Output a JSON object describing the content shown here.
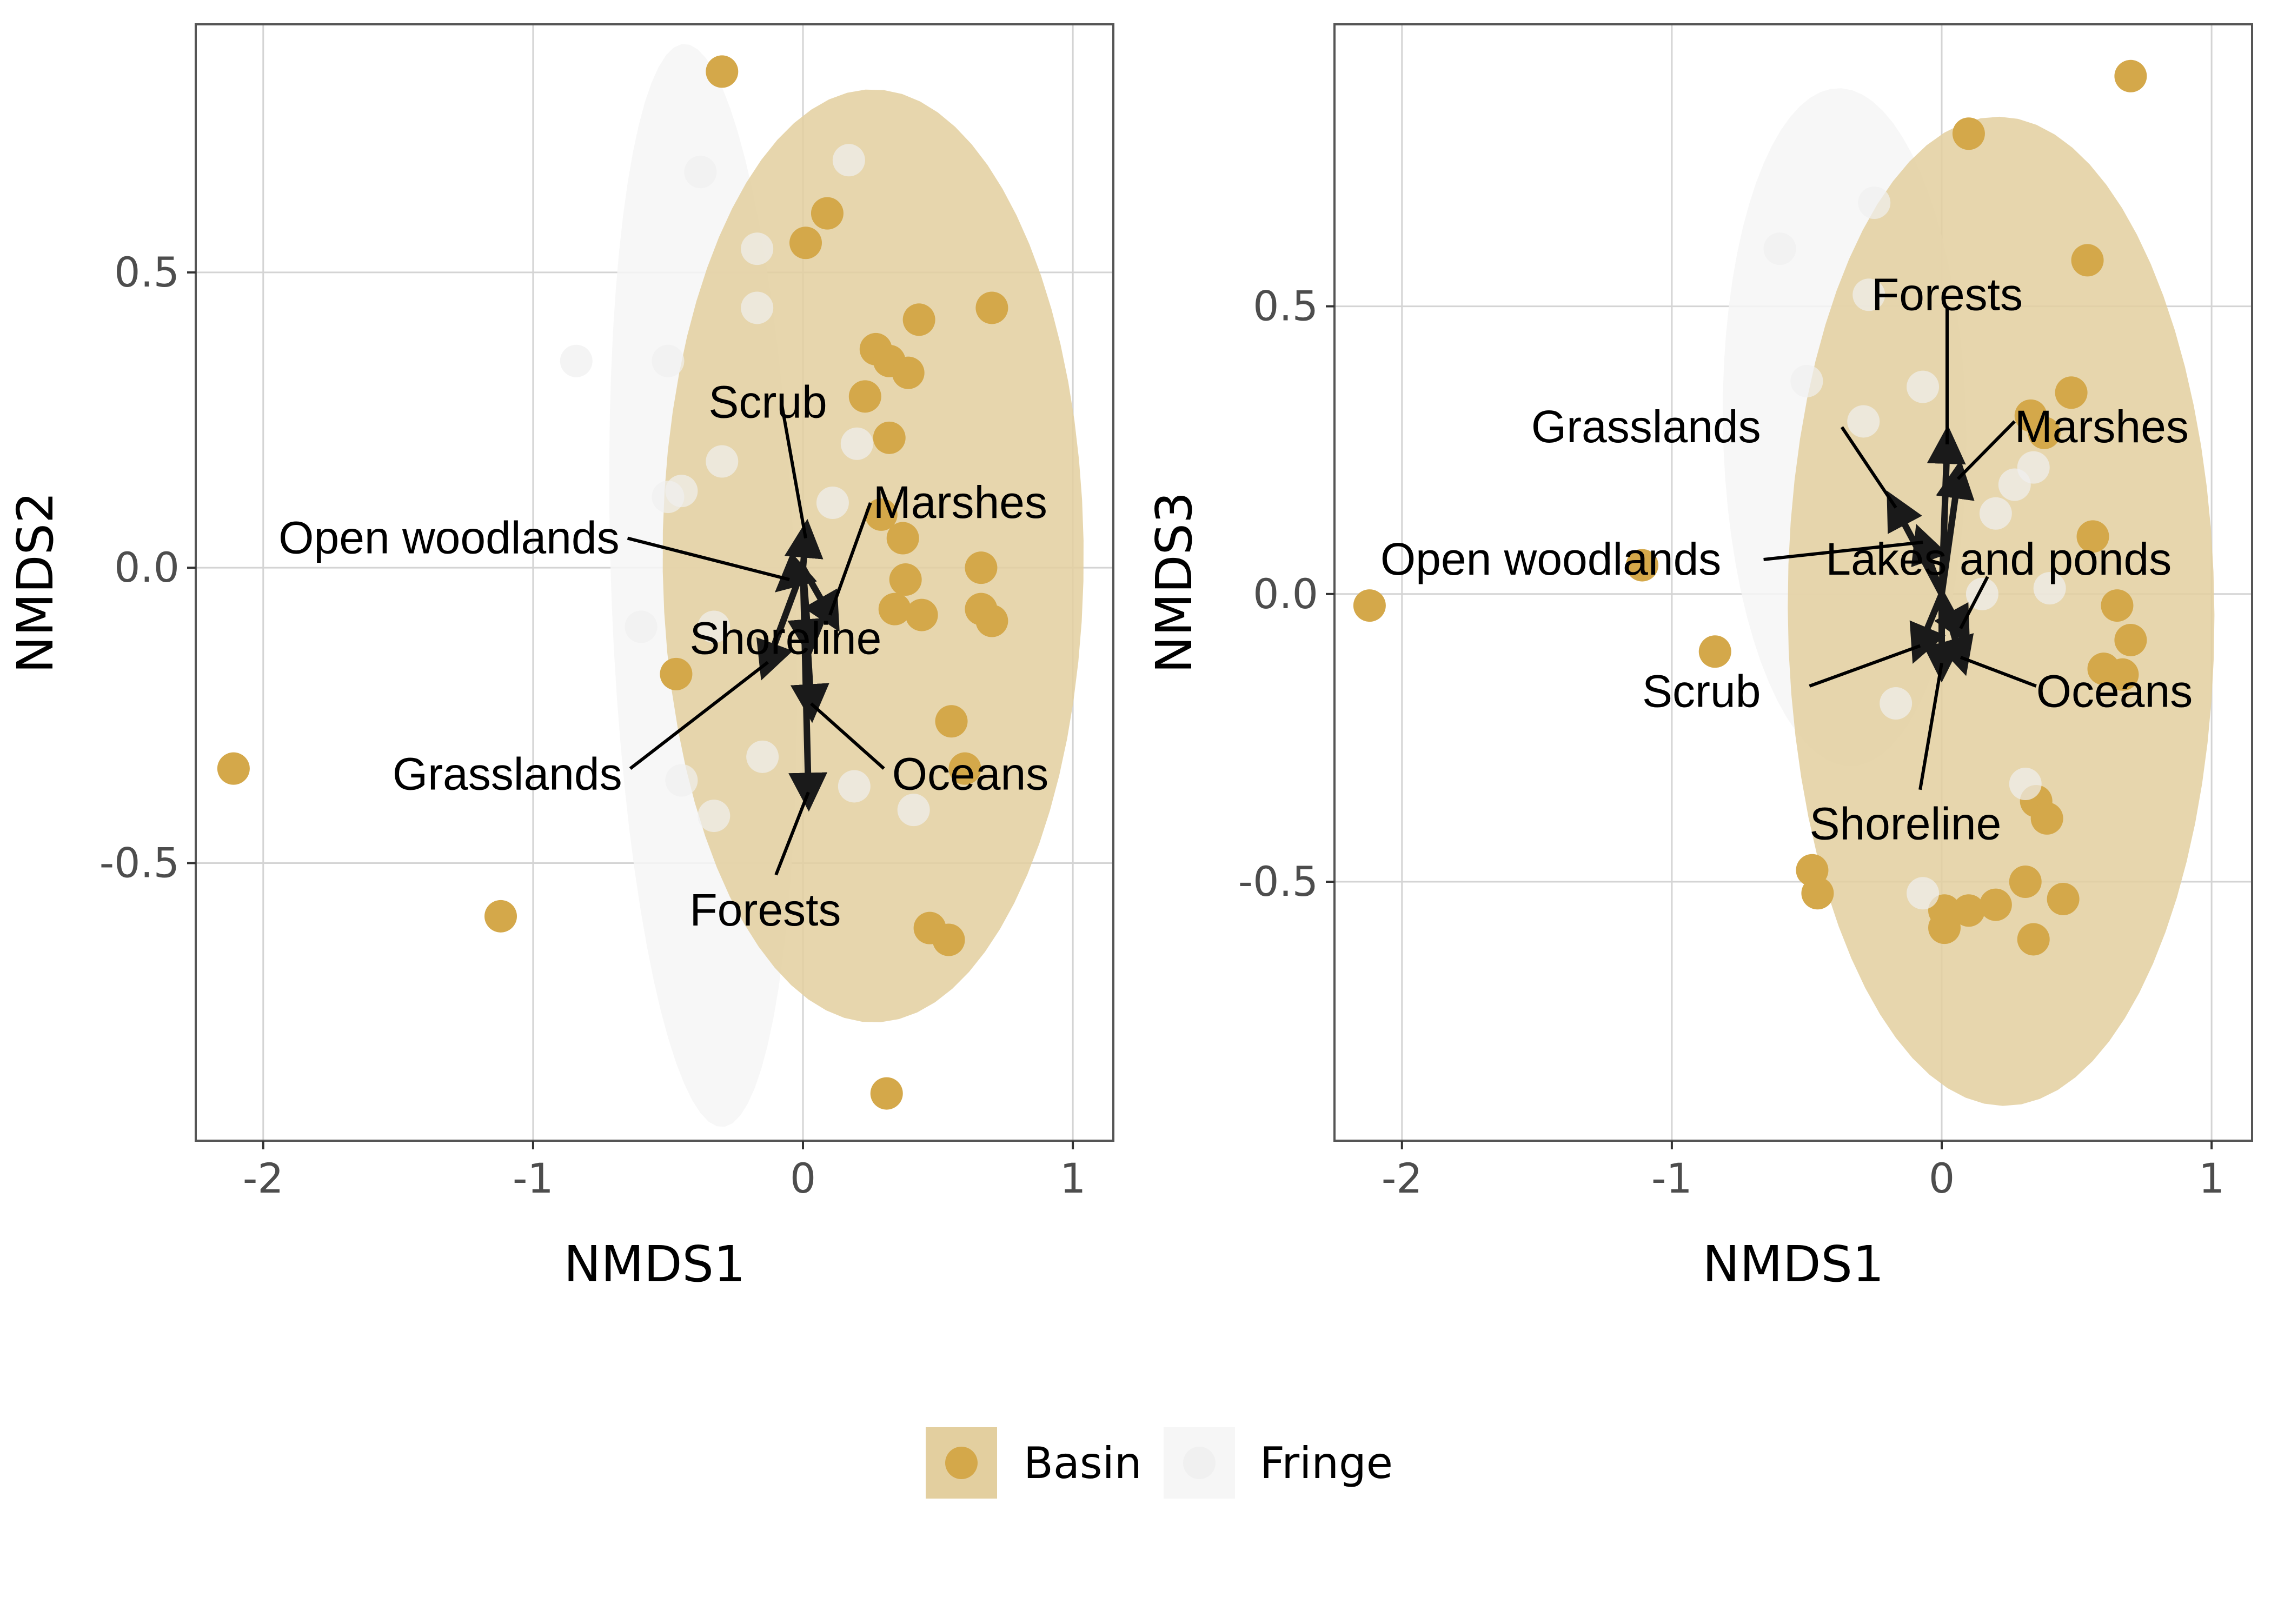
{
  "colors": {
    "basin": "#d4a84a",
    "basin_ellipse": "#e3cf9f",
    "fringe": "#f0f0f0",
    "fringe_ellipse": "#f6f6f6",
    "grid": "#d4d4d4",
    "panel_border": "#555555",
    "arrow": "#1a1a1a"
  },
  "legend": {
    "items": [
      {
        "label": "Basin",
        "color_key": "basin",
        "fill_key": "basin_ellipse"
      },
      {
        "label": "Fringe",
        "color_key": "fringe",
        "fill_key": "fringe_ellipse"
      }
    ]
  },
  "chart_data": [
    {
      "type": "scatter",
      "xlabel": "NMDS1",
      "ylabel": "NMDS2",
      "xlim": [
        -2.25,
        1.15
      ],
      "ylim": [
        -0.97,
        0.92
      ],
      "xticks": [
        -2,
        -1,
        0,
        1
      ],
      "xtick_labels": [
        "-2",
        "-1",
        "0",
        "1"
      ],
      "yticks": [
        -0.5,
        0.0,
        0.5
      ],
      "ytick_labels": [
        "-0.5",
        "0.0",
        "0.5"
      ],
      "grid": true,
      "ellipses": [
        {
          "group": "Fringe",
          "cx": -0.37,
          "cy": -0.03,
          "rx": 0.92,
          "ry": 0.34,
          "angle": 95
        },
        {
          "group": "Basin",
          "cx": 0.26,
          "cy": 0.02,
          "rx": 0.79,
          "ry": 0.78,
          "angle": -83
        }
      ],
      "series": [
        {
          "name": "Basin",
          "points": [
            [
              -0.3,
              0.84
            ],
            [
              0.09,
              0.6
            ],
            [
              0.01,
              0.55
            ],
            [
              0.43,
              0.42
            ],
            [
              0.7,
              0.44
            ],
            [
              0.27,
              0.37
            ],
            [
              0.32,
              0.35
            ],
            [
              0.39,
              0.33
            ],
            [
              0.23,
              0.29
            ],
            [
              0.32,
              0.22
            ],
            [
              0.29,
              0.09
            ],
            [
              0.37,
              0.05
            ],
            [
              0.38,
              -0.02
            ],
            [
              0.34,
              -0.07
            ],
            [
              0.44,
              -0.08
            ],
            [
              0.66,
              0.0
            ],
            [
              0.66,
              -0.07
            ],
            [
              0.7,
              -0.09
            ],
            [
              0.55,
              -0.26
            ],
            [
              0.6,
              -0.34
            ],
            [
              0.47,
              -0.61
            ],
            [
              0.54,
              -0.63
            ],
            [
              0.31,
              -0.89
            ],
            [
              -0.47,
              -0.18
            ],
            [
              -2.11,
              -0.34
            ],
            [
              -1.12,
              -0.59
            ]
          ]
        },
        {
          "name": "Fringe",
          "points": [
            [
              -0.38,
              0.67
            ],
            [
              0.17,
              0.69
            ],
            [
              -0.17,
              0.54
            ],
            [
              -0.17,
              0.44
            ],
            [
              -0.84,
              0.35
            ],
            [
              -0.5,
              0.35
            ],
            [
              0.2,
              0.21
            ],
            [
              -0.3,
              0.18
            ],
            [
              -0.45,
              0.13
            ],
            [
              -0.5,
              0.12
            ],
            [
              0.11,
              0.11
            ],
            [
              -0.6,
              -0.1
            ],
            [
              -0.33,
              -0.1
            ],
            [
              -0.45,
              -0.36
            ],
            [
              -0.15,
              -0.32
            ],
            [
              0.19,
              -0.37
            ],
            [
              0.41,
              -0.41
            ],
            [
              -0.33,
              -0.42
            ]
          ]
        }
      ],
      "biplot": [
        {
          "label": "Scrub",
          "arrow_end": [
            0.01,
            0.05
          ],
          "label_at": [
            -0.35,
            0.28
          ],
          "anchor": "start",
          "leader_from": [
            -0.08,
            0.28
          ]
        },
        {
          "label": "Open woodlands",
          "arrow_end": [
            -0.05,
            -0.02
          ],
          "label_at": [
            -0.68,
            0.05
          ],
          "anchor": "end",
          "leader_from": [
            -0.65,
            0.05
          ]
        },
        {
          "label": "Marshes",
          "arrow_end": [
            0.1,
            -0.08
          ],
          "label_at": [
            0.26,
            0.11
          ],
          "anchor": "start",
          "leader_from": [
            0.25,
            0.11
          ]
        },
        {
          "label": "Shoreline",
          "arrow_end": [
            0.02,
            -0.12
          ],
          "label_at": [
            -0.42,
            -0.12
          ],
          "anchor": "start",
          "leader_from": null
        },
        {
          "label": "Grasslands",
          "arrow_end": [
            -0.13,
            -0.16
          ],
          "label_at": [
            -0.67,
            -0.35
          ],
          "anchor": "end",
          "leader_from": [
            -0.64,
            -0.34
          ]
        },
        {
          "label": "Oceans",
          "arrow_end": [
            0.03,
            -0.23
          ],
          "label_at": [
            0.33,
            -0.35
          ],
          "anchor": "start",
          "leader_from": [
            0.3,
            -0.34
          ]
        },
        {
          "label": "Forests",
          "arrow_end": [
            0.02,
            -0.38
          ],
          "label_at": [
            -0.42,
            -0.58
          ],
          "anchor": "start",
          "leader_from": [
            -0.1,
            -0.52
          ]
        }
      ]
    },
    {
      "type": "scatter",
      "xlabel": "NMDS1",
      "ylabel": "NMDS3",
      "xlim": [
        -2.25,
        1.15
      ],
      "ylim": [
        -0.95,
        0.99
      ],
      "xticks": [
        -2,
        -1,
        0,
        1
      ],
      "xtick_labels": [
        "-2",
        "-1",
        "0",
        "1"
      ],
      "yticks": [
        -0.5,
        0.0,
        0.5
      ],
      "ytick_labels": [
        "-0.5",
        "0.0",
        "0.5"
      ],
      "grid": true,
      "ellipses": [
        {
          "group": "Fringe",
          "cx": -0.36,
          "cy": 0.29,
          "rx": 0.59,
          "ry": 0.45,
          "angle": 95
        },
        {
          "group": "Basin",
          "cx": 0.22,
          "cy": -0.03,
          "rx": 0.86,
          "ry": 0.79,
          "angle": -85
        }
      ],
      "series": [
        {
          "name": "Basin",
          "points": [
            [
              0.7,
              0.9
            ],
            [
              0.1,
              0.8
            ],
            [
              0.54,
              0.58
            ],
            [
              0.33,
              0.31
            ],
            [
              0.48,
              0.35
            ],
            [
              0.38,
              0.28
            ],
            [
              0.56,
              0.1
            ],
            [
              0.65,
              -0.02
            ],
            [
              0.7,
              -0.08
            ],
            [
              0.6,
              -0.13
            ],
            [
              0.67,
              -0.14
            ],
            [
              0.35,
              -0.36
            ],
            [
              0.39,
              -0.39
            ],
            [
              -0.48,
              -0.48
            ],
            [
              -0.46,
              -0.52
            ],
            [
              0.01,
              -0.55
            ],
            [
              0.1,
              -0.55
            ],
            [
              0.2,
              -0.54
            ],
            [
              0.31,
              -0.5
            ],
            [
              0.45,
              -0.53
            ],
            [
              0.01,
              -0.58
            ],
            [
              0.34,
              -0.6
            ],
            [
              -0.84,
              -0.1
            ],
            [
              -1.11,
              0.05
            ],
            [
              -2.12,
              -0.02
            ]
          ]
        },
        {
          "name": "Fringe",
          "points": [
            [
              -0.25,
              0.68
            ],
            [
              -0.6,
              0.6
            ],
            [
              -0.27,
              0.52
            ],
            [
              -0.5,
              0.37
            ],
            [
              -0.07,
              0.36
            ],
            [
              -0.29,
              0.3
            ],
            [
              0.34,
              0.22
            ],
            [
              0.27,
              0.19
            ],
            [
              0.2,
              0.14
            ],
            [
              0.4,
              0.01
            ],
            [
              -0.17,
              -0.19
            ],
            [
              0.31,
              -0.33
            ],
            [
              -0.07,
              -0.52
            ],
            [
              0.15,
              0.0
            ]
          ]
        }
      ],
      "biplot": [
        {
          "label": "Forests",
          "arrow_end": [
            0.02,
            0.26
          ],
          "label_at": [
            0.02,
            0.52
          ],
          "anchor": "middle",
          "leader_from": [
            0.02,
            0.5
          ]
        },
        {
          "label": "Grasslands",
          "arrow_end": [
            -0.17,
            0.15
          ],
          "label_at": [
            -0.67,
            0.29
          ],
          "anchor": "end",
          "leader_from": [
            -0.37,
            0.29
          ]
        },
        {
          "label": "Marshes",
          "arrow_end": [
            0.06,
            0.2
          ],
          "label_at": [
            0.27,
            0.29
          ],
          "anchor": "start",
          "leader_from": [
            0.27,
            0.3
          ]
        },
        {
          "label": "Open woodlands",
          "arrow_end": [
            -0.07,
            0.09
          ],
          "label_at": [
            -2.08,
            0.06
          ],
          "anchor": "start",
          "leader_from": [
            -0.66,
            0.06
          ]
        },
        {
          "label": "Lakes and ponds",
          "arrow_end": [
            0.07,
            -0.06
          ],
          "label_at": [
            -0.43,
            0.06
          ],
          "anchor": "start",
          "leader_from": [
            0.17,
            0.03
          ]
        },
        {
          "label": "Scrub",
          "arrow_end": [
            -0.08,
            -0.09
          ],
          "label_at": [
            -1.11,
            -0.17
          ],
          "anchor": "start",
          "leader_from": [
            -0.49,
            -0.16
          ]
        },
        {
          "label": "Oceans",
          "arrow_end": [
            0.07,
            -0.11
          ],
          "label_at": [
            0.35,
            -0.17
          ],
          "anchor": "start",
          "leader_from": [
            0.35,
            -0.16
          ]
        },
        {
          "label": "Shoreline",
          "arrow_end": [
            0.0,
            -0.12
          ],
          "label_at": [
            -0.49,
            -0.4
          ],
          "anchor": "start",
          "leader_from": [
            -0.08,
            -0.34
          ]
        }
      ]
    }
  ]
}
